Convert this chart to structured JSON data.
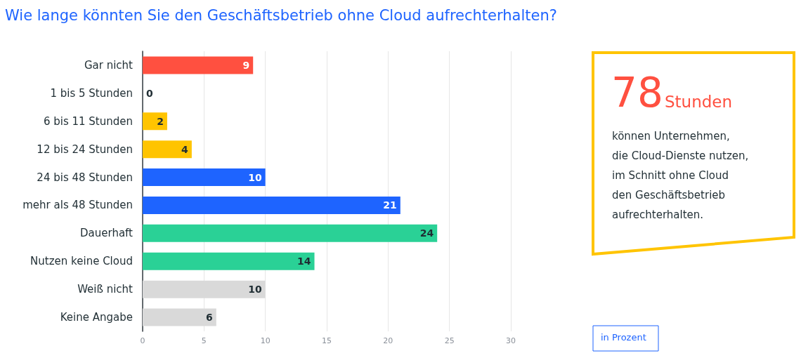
{
  "chart_data": {
    "type": "bar",
    "orientation": "horizontal",
    "title": "Wie lange könnten Sie den Geschäftsbetrieb ohne Cloud aufrechterhalten?",
    "categories": [
      "Gar nicht",
      "1 bis 5 Stunden",
      "6 bis 11 Stunden",
      "12 bis 24 Stunden",
      "24 bis 48 Stunden",
      "mehr als 48 Stunden",
      "Dauerhaft",
      "Nutzen keine Cloud",
      "Weiß nicht",
      "Keine Angabe"
    ],
    "values": [
      9,
      0,
      2,
      4,
      10,
      21,
      24,
      14,
      10,
      6
    ],
    "colors": [
      "#ff5040",
      "#ff5040",
      "#ffc400",
      "#ffc400",
      "#1e64ff",
      "#1e64ff",
      "#2ad196",
      "#2ad196",
      "#d9d9d9",
      "#d9d9d9"
    ],
    "xlim": [
      0,
      30
    ],
    "xticks": [
      0,
      5,
      10,
      15,
      20,
      25,
      30
    ],
    "grid": "x",
    "data_labels": true,
    "annotations": [
      "78",
      "Stunden",
      "können Unternehmen,\ndie Cloud-Dienste nutzen,\nim Schnitt ohne Cloud\nden Geschäftsbetrieb\naufrechterhalten.",
      "in Prozent"
    ]
  }
}
